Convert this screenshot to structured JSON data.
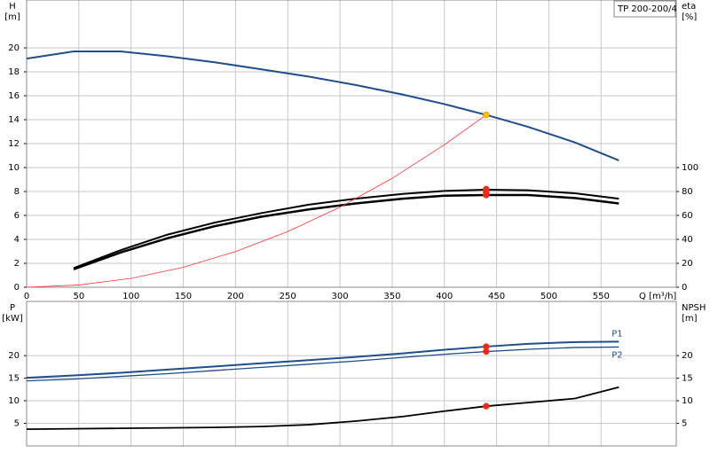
{
  "chart_data": [
    {
      "type": "line",
      "title": "TP 200-200/4",
      "xlabel": "Q [m³/h]",
      "ylabel": [
        "H",
        "[m]"
      ],
      "y2label": [
        "eta",
        "[%]"
      ],
      "xlim": [
        0,
        622
      ],
      "xticks": [
        0,
        50,
        100,
        150,
        200,
        250,
        300,
        350,
        400,
        450,
        500,
        550
      ],
      "ylim": [
        0,
        24
      ],
      "yticks": [
        0,
        2,
        4,
        6,
        8,
        10,
        12,
        14,
        16,
        18,
        20
      ],
      "y2lim": [
        0,
        240
      ],
      "y2ticks": [
        0,
        20,
        40,
        60,
        80,
        100
      ],
      "grid": true,
      "xtick_labels": true,
      "series": [
        {
          "color": "#1f4e8c",
          "width": 2,
          "x": [
            0,
            45,
            90,
            135,
            180,
            225,
            270,
            315,
            360,
            400,
            440,
            480,
            525,
            567
          ],
          "values": [
            19.1,
            19.7,
            19.7,
            19.3,
            18.8,
            18.2,
            17.6,
            16.9,
            16.1,
            15.3,
            14.4,
            13.4,
            12.1,
            10.6
          ]
        },
        {
          "color": "#000000",
          "width": 2,
          "axis": "y2",
          "x": [
            45,
            90,
            135,
            180,
            225,
            270,
            315,
            360,
            400,
            440,
            480,
            525,
            567
          ],
          "values": [
            16,
            31,
            44,
            54,
            62,
            69,
            74,
            78,
            80.5,
            81.5,
            81,
            78.5,
            74
          ]
        },
        {
          "color": "#000000",
          "width": 2.5,
          "axis": "y2",
          "x": [
            45,
            90,
            135,
            180,
            225,
            270,
            315,
            360,
            400,
            440,
            480,
            525,
            567
          ],
          "values": [
            15,
            29,
            41,
            51,
            59,
            65,
            70,
            74,
            76.5,
            77,
            77,
            74.5,
            70
          ]
        },
        {
          "color": "#ff3030",
          "width": 0.8,
          "x": [
            0,
            50,
            100,
            150,
            200,
            250,
            300,
            350,
            400,
            440
          ],
          "values": [
            0,
            0.19,
            0.74,
            1.67,
            2.98,
            4.65,
            6.69,
            9.1,
            11.9,
            14.4
          ]
        }
      ],
      "points": [
        {
          "x": 440,
          "y": 82,
          "axis": "y2",
          "color": "#ff2020"
        },
        {
          "x": 440,
          "y": 79.5,
          "axis": "y2",
          "color": "#ff2020"
        },
        {
          "x": 440,
          "y": 77,
          "axis": "y2",
          "color": "#ff2020"
        },
        {
          "x": 440,
          "y": 14.4,
          "color": "#ffc000"
        }
      ]
    },
    {
      "type": "line",
      "ylabel": [
        "P",
        "[kW]"
      ],
      "y2label": [
        "NPSH",
        "[m]"
      ],
      "xlim": [
        0,
        622
      ],
      "xticks": [
        0,
        50,
        100,
        150,
        200,
        250,
        300,
        350,
        400,
        450,
        500,
        550
      ],
      "ylim": [
        0,
        32
      ],
      "yticks": [
        5,
        10,
        15,
        20
      ],
      "y2lim": [
        0,
        32
      ],
      "y2ticks": [
        5,
        10,
        15,
        20
      ],
      "grid": true,
      "xtick_labels": false,
      "series": [
        {
          "name": "P1",
          "color": "#1f4e8c",
          "width": 2,
          "x": [
            0,
            45,
            90,
            135,
            180,
            225,
            270,
            315,
            360,
            400,
            440,
            480,
            525,
            567
          ],
          "values": [
            15.1,
            15.6,
            16.2,
            16.9,
            17.6,
            18.3,
            19.0,
            19.7,
            20.5,
            21.3,
            22.0,
            22.6,
            23.0,
            23.1
          ]
        },
        {
          "name": "P2",
          "color": "#1f4e8c",
          "width": 1.3,
          "x": [
            0,
            45,
            90,
            135,
            180,
            225,
            270,
            315,
            360,
            400,
            440,
            480,
            525,
            567
          ],
          "values": [
            14.4,
            14.8,
            15.4,
            16.0,
            16.7,
            17.4,
            18.1,
            18.8,
            19.6,
            20.3,
            20.9,
            21.4,
            21.8,
            21.9
          ]
        },
        {
          "color": "#000000",
          "width": 1.8,
          "axis": "y2",
          "x": [
            0,
            45,
            90,
            135,
            180,
            225,
            270,
            315,
            360,
            400,
            440,
            480,
            525,
            567
          ],
          "values": [
            3.7,
            3.8,
            3.9,
            4.0,
            4.1,
            4.3,
            4.7,
            5.5,
            6.5,
            7.7,
            8.8,
            9.6,
            10.5,
            13.0
          ]
        }
      ],
      "points": [
        {
          "x": 440,
          "y": 22.0,
          "color": "#ff2020"
        },
        {
          "x": 440,
          "y": 20.9,
          "color": "#ff2020"
        },
        {
          "x": 440,
          "y": 8.8,
          "axis": "y2",
          "color": "#ff2020"
        }
      ]
    }
  ]
}
